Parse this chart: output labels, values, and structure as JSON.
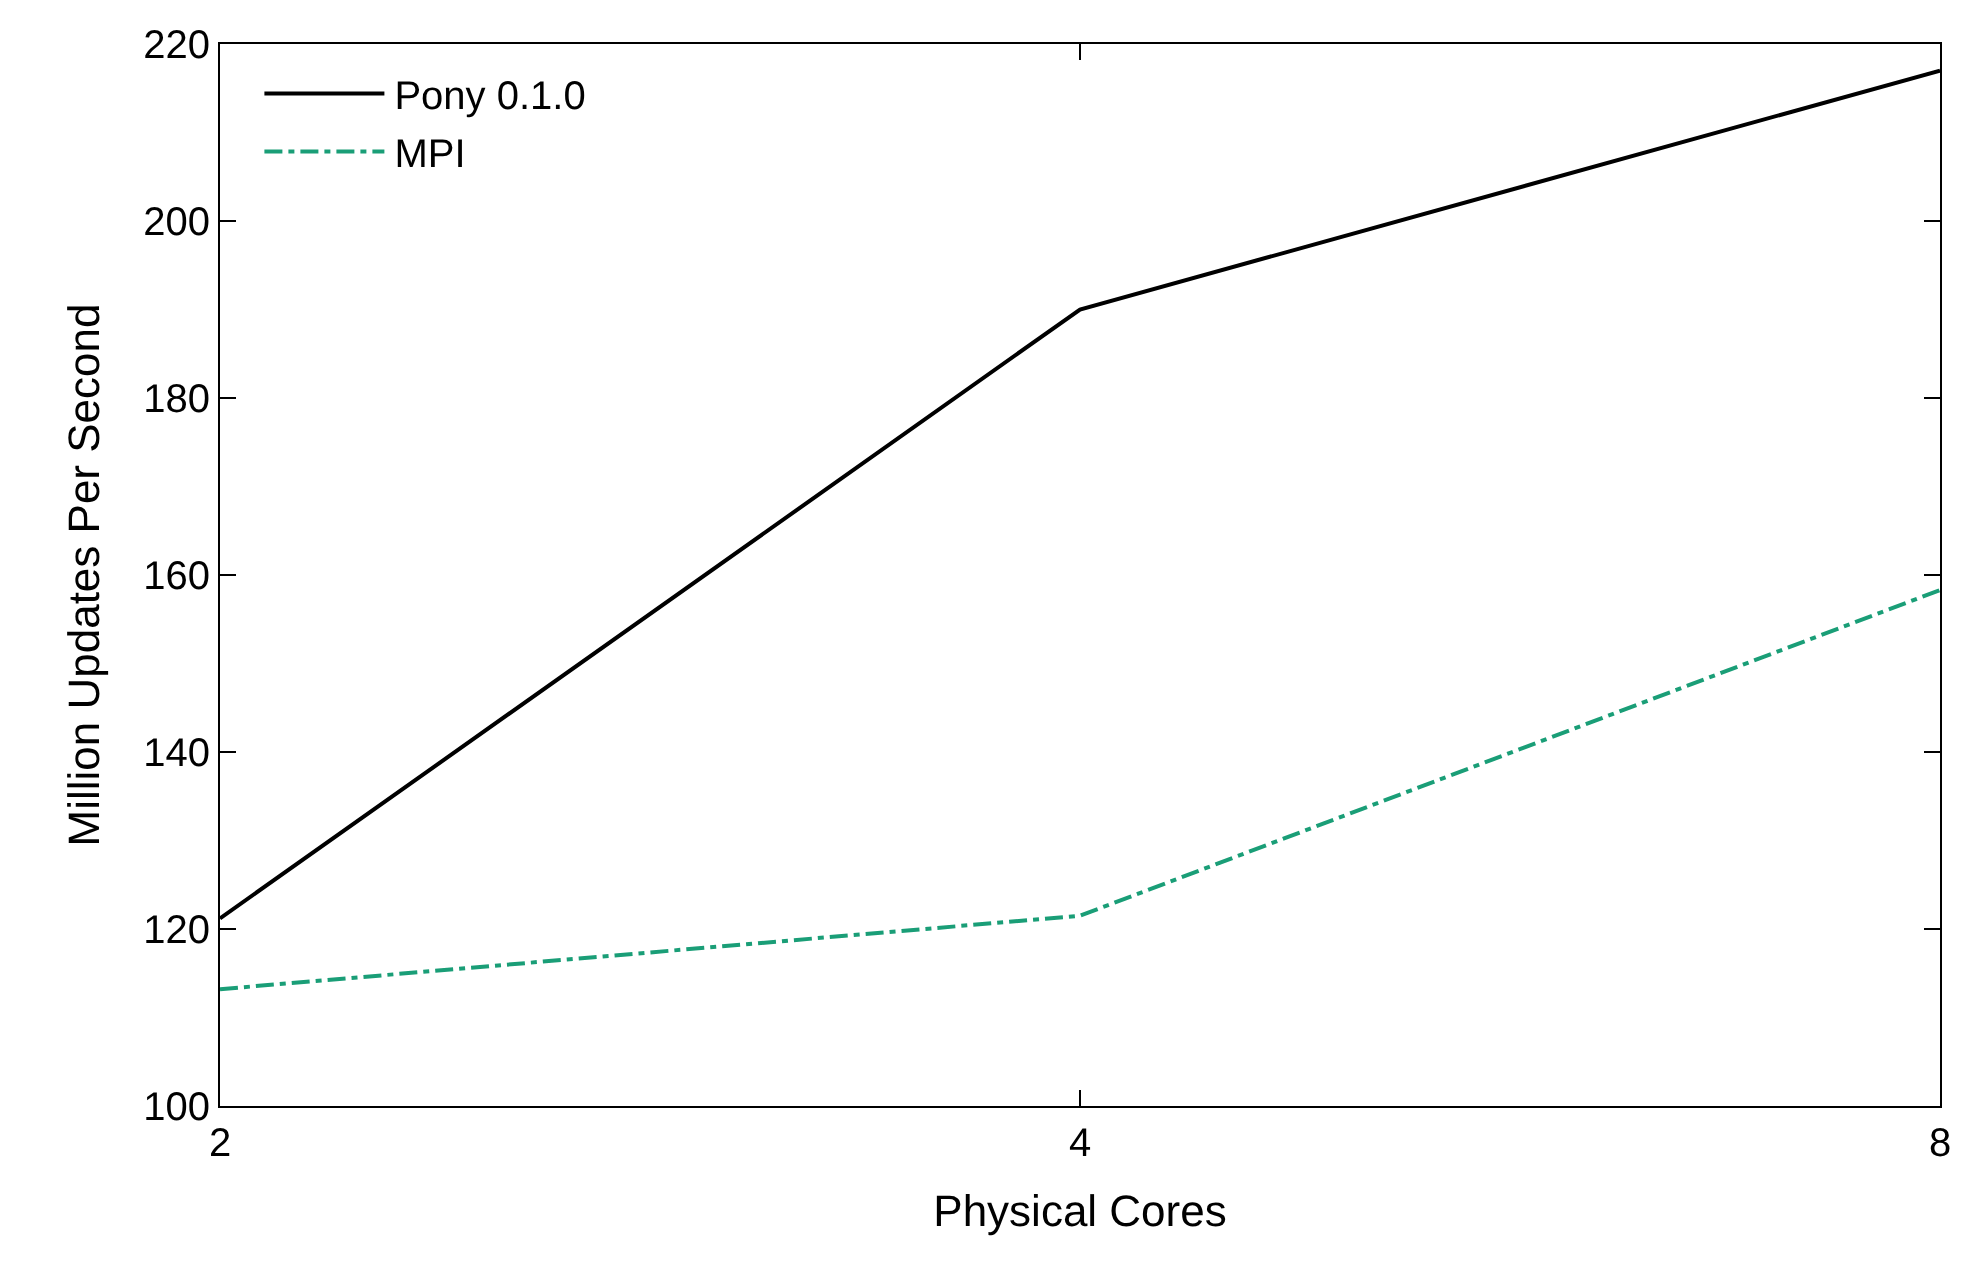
{
  "chart_data": {
    "type": "line",
    "xlabel": "Physical Cores",
    "ylabel": "Million Updates Per Second",
    "x": [
      2,
      4,
      8
    ],
    "log": "x",
    "xlim": [
      2,
      8
    ],
    "xticks": [
      2,
      4,
      8
    ],
    "ylim": [
      100,
      220
    ],
    "yticks": [
      100,
      120,
      140,
      160,
      180,
      200,
      220
    ],
    "legend": "top left",
    "marker": "none",
    "series": [
      {
        "name": "Pony 0.1.0",
        "color": "#000000",
        "line_style": "solid",
        "values": [
          121.2,
          190,
          217
        ]
      },
      {
        "name": "MPI",
        "color": "#1a9e77",
        "line_style": "dashdot",
        "values": [
          113.2,
          121.5,
          158.3
        ]
      }
    ]
  }
}
